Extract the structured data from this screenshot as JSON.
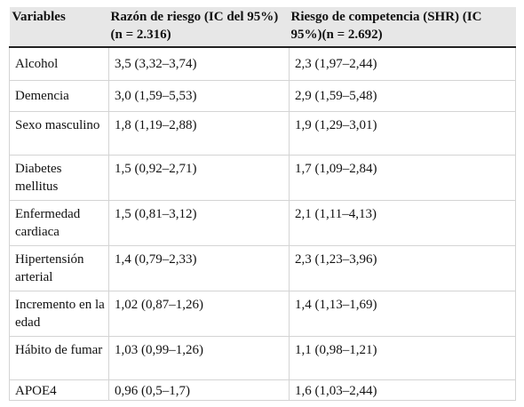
{
  "table": {
    "headers": [
      "Variables",
      "Razón de riesgo (IC del 95%) (n = 2.316)",
      "Riesgo de competencia (SHR) (IC 95%)(n = 2.692)"
    ],
    "rows": [
      [
        "Alcohol",
        "3,5 (3,32–3,74)",
        "2,3 (1,97–2,44)"
      ],
      [
        "Demencia",
        "3,0 (1,59–5,53)",
        "2,9 (1,59–5,48)"
      ],
      [
        "Sexo masculino",
        "1,8 (1,19–2,88)",
        "1,9 (1,29–3,01)"
      ],
      [
        "Diabetes mellitus",
        "1,5 (0,92–2,71)",
        "1,7 (1,09–2,84)"
      ],
      [
        "Enfermedad cardiaca",
        "1,5 (0,81–3,12)",
        "2,1 (1,11–4,13)"
      ],
      [
        "Hipertensión arterial",
        "1,4 (0,79–2,33)",
        "2,3 (1,23–3,96)"
      ],
      [
        "Incremento en la edad",
        "1,02 (0,87–1,26)",
        "1,4 (1,13–1,69)"
      ],
      [
        "Hábito de fumar",
        "1,03 (0,99–1,26)",
        "1,1 (0,98–1,21)"
      ],
      [
        "APOE4",
        "0,96 (0,5–1,7)",
        "1,6 (1,03–2,44)"
      ]
    ]
  }
}
